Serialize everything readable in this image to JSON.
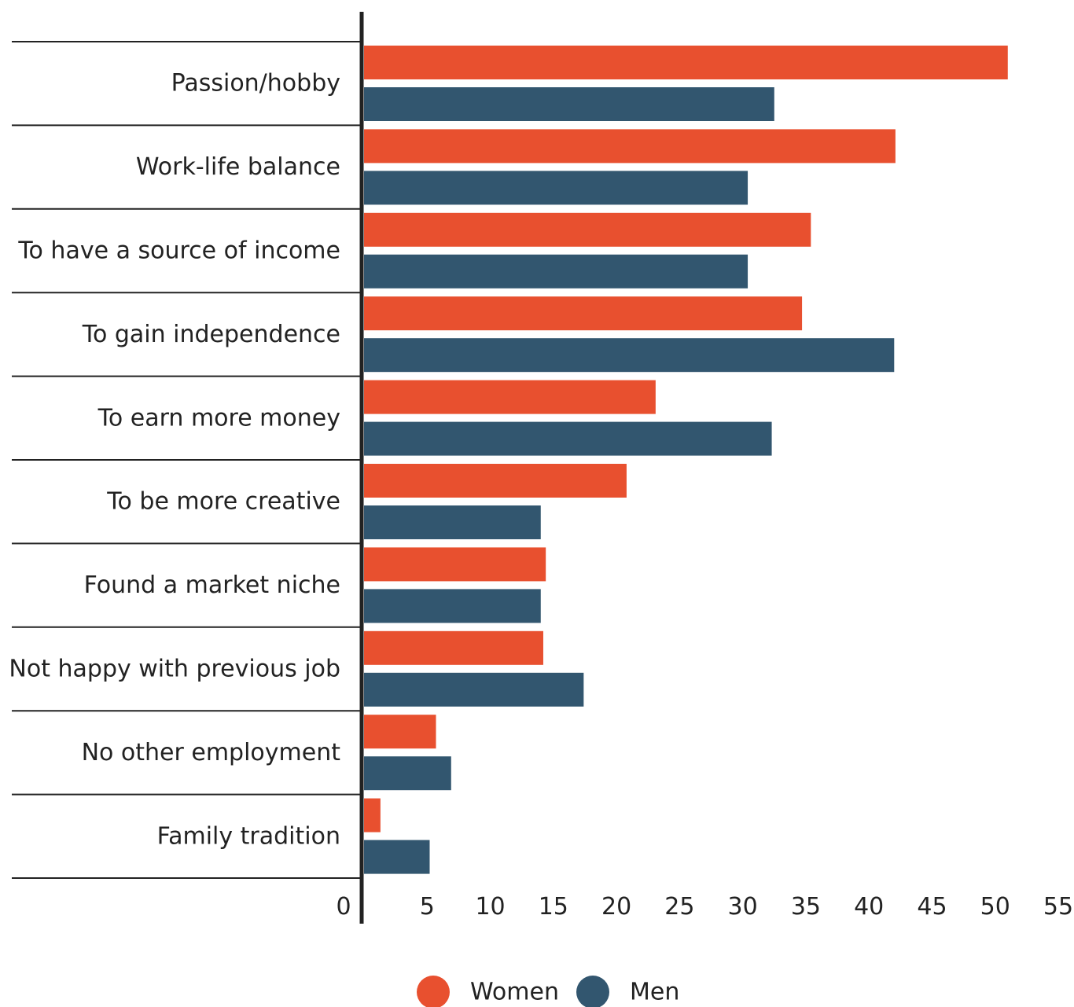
{
  "chart_data": {
    "type": "bar",
    "orientation": "horizontal",
    "categories": [
      "Passion/hobby",
      "Work-life balance",
      "To have a source of income",
      "To gain independence",
      "To earn more money",
      "To be more creative",
      "Found a market niche",
      "Not happy with previous job",
      "No other employment",
      "Family tradition"
    ],
    "series": [
      {
        "name": "Women",
        "color": "#E8502F",
        "values": [
          51,
          42.1,
          35.4,
          34.7,
          23.1,
          20.8,
          14.4,
          14.2,
          5.7,
          1.3
        ]
      },
      {
        "name": "Men",
        "color": "#32566F",
        "values": [
          32.5,
          30.4,
          30.4,
          42,
          32.3,
          14,
          14,
          17.4,
          6.9,
          5.2
        ]
      }
    ],
    "xlim": [
      0,
      55
    ],
    "x_ticks": [
      0,
      5,
      10,
      15,
      20,
      25,
      30,
      35,
      40,
      45,
      50,
      55
    ],
    "title": "",
    "xlabel": "",
    "ylabel": "",
    "grid": false,
    "legend_position": "bottom-center"
  }
}
